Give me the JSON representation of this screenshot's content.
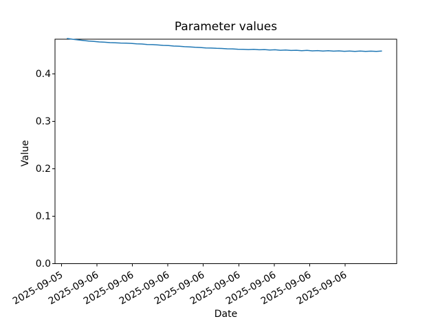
{
  "chart_data": {
    "type": "line",
    "title": "Parameter values",
    "xlabel": "Date",
    "ylabel": "Value",
    "x_tick_labels": [
      "2025-09-05",
      "2025-09-06",
      "2025-09-06",
      "2025-09-06",
      "2025-09-06",
      "2025-09-06",
      "2025-09-06",
      "2025-09-06",
      "2025-09-06"
    ],
    "y_tick_values": [
      0.0,
      0.1,
      0.2,
      0.3,
      0.4
    ],
    "y_tick_labels": [
      "0.0",
      "0.1",
      "0.2",
      "0.3",
      "0.4"
    ],
    "ylim": [
      0.0,
      0.473
    ],
    "grid": false,
    "legend": "none",
    "line_color": "#1f77b4",
    "axis_color": "#000000",
    "values": [
      0.4746,
      0.4731,
      0.4717,
      0.4705,
      0.4693,
      0.4686,
      0.4674,
      0.4668,
      0.466,
      0.4657,
      0.4651,
      0.4648,
      0.4643,
      0.4635,
      0.4631,
      0.4621,
      0.4617,
      0.461,
      0.4602,
      0.4597,
      0.4587,
      0.4583,
      0.4574,
      0.457,
      0.4561,
      0.4556,
      0.4548,
      0.4545,
      0.4539,
      0.4536,
      0.4529,
      0.4527,
      0.4521,
      0.4519,
      0.4513,
      0.4517,
      0.4508,
      0.4513,
      0.4504,
      0.4508,
      0.4499,
      0.4503,
      0.4494,
      0.4499,
      0.449,
      0.4495,
      0.4486,
      0.4491,
      0.4483,
      0.4488,
      0.448,
      0.4486,
      0.4477,
      0.4483,
      0.4475,
      0.4481,
      0.4474,
      0.448,
      0.4475,
      0.4482
    ]
  }
}
